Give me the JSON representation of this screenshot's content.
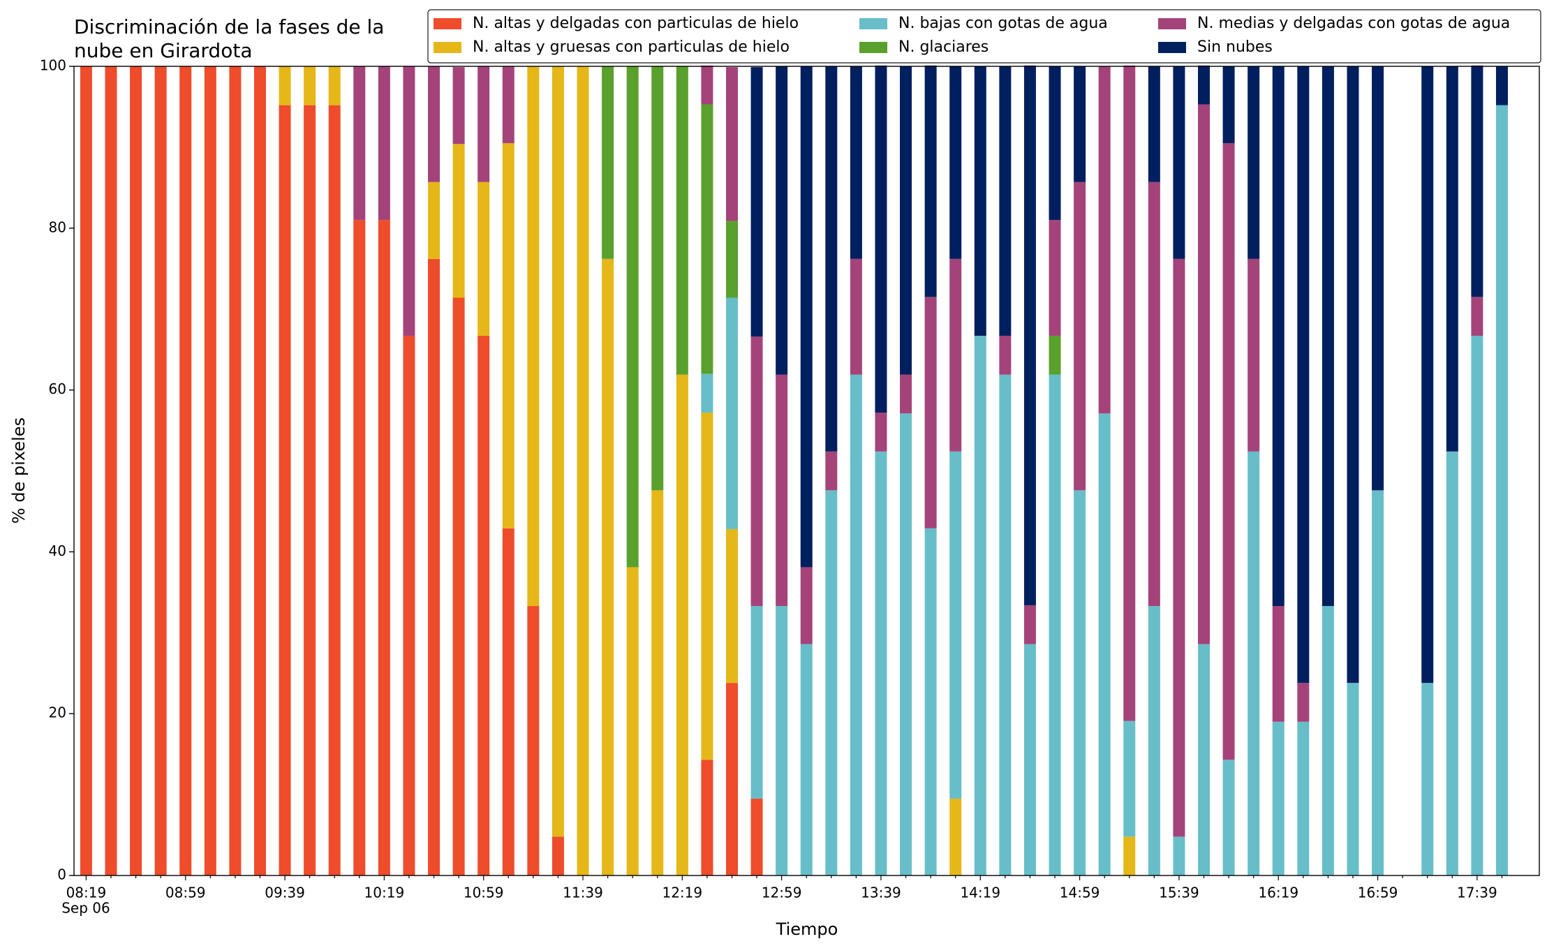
{
  "chart_data": {
    "type": "stacked_bar",
    "title": [
      "Discriminación de la fases de la",
      "nube en Girardota"
    ],
    "x_label": "Tiempo",
    "y_label": "% de pixeles",
    "x_date_label": "Sep 06",
    "categories": [
      "08:19",
      null,
      null,
      null,
      "08:59",
      null,
      null,
      null,
      "09:39",
      null,
      null,
      null,
      "10:19",
      null,
      null,
      null,
      "10:59",
      null,
      null,
      null,
      "11:39",
      null,
      null,
      null,
      "12:19",
      null,
      null,
      null,
      "12:59",
      null,
      null,
      null,
      "13:39",
      null,
      null,
      null,
      "14:19",
      null,
      null,
      null,
      "14:59",
      null,
      null,
      null,
      "15:39",
      null,
      null,
      null,
      "16:19",
      null,
      null,
      null,
      "16:59",
      null,
      null,
      null,
      "17:39",
      null
    ],
    "ylim": [
      0,
      100
    ],
    "yticks": [
      0,
      20,
      40,
      60,
      80,
      100
    ],
    "grid": false,
    "legend": "top-right",
    "series": [
      {
        "name": "N. altas y delgadas con particulas de hielo",
        "color": "#ee4c2b",
        "values": [
          100,
          100,
          100,
          100,
          100,
          100,
          100,
          100,
          95.2,
          95.2,
          95.2,
          81,
          81,
          66.7,
          76.2,
          71.4,
          66.7,
          42.9,
          33.3,
          4.8,
          0,
          0,
          0,
          0,
          0,
          14.3,
          23.8,
          9.5,
          0,
          0,
          0,
          0,
          0,
          0,
          0,
          0,
          0,
          0,
          0,
          0,
          0,
          0,
          0,
          0,
          0,
          0,
          0,
          0,
          0,
          0,
          0,
          0,
          0,
          null,
          0,
          0,
          0,
          0
        ]
      },
      {
        "name": "N. altas y gruesas con particulas de hielo",
        "color": "#e5b718",
        "values": [
          0,
          0,
          0,
          0,
          0,
          0,
          0,
          0,
          4.8,
          4.8,
          4.8,
          0,
          0,
          0,
          9.5,
          19,
          19,
          47.6,
          66.7,
          95.2,
          100,
          76.2,
          38.1,
          47.6,
          61.9,
          42.9,
          19,
          0,
          0,
          0,
          0,
          0,
          0,
          0,
          0,
          9.5,
          0,
          0,
          0,
          0,
          0,
          0,
          4.8,
          0,
          0,
          0,
          0,
          0,
          0,
          0,
          0,
          0,
          0,
          null,
          0,
          0,
          0,
          0
        ]
      },
      {
        "name": "N. bajas con gotas de agua",
        "color": "#67bec9",
        "values": [
          0,
          0,
          0,
          0,
          0,
          0,
          0,
          0,
          0,
          0,
          0,
          0,
          0,
          0,
          0,
          0,
          0,
          0,
          0,
          0,
          0,
          0,
          0,
          0,
          0,
          4.8,
          28.6,
          23.8,
          33.3,
          28.6,
          47.6,
          61.9,
          52.4,
          57.1,
          42.9,
          42.9,
          66.7,
          61.9,
          28.6,
          61.9,
          47.6,
          57.1,
          14.3,
          33.3,
          4.8,
          28.6,
          14.3,
          52.4,
          19,
          19,
          33.3,
          23.8,
          47.6,
          null,
          23.8,
          52.4,
          66.7,
          95.2
        ]
      },
      {
        "name": "N. glaciares",
        "color": "#5aa02c",
        "values": [
          0,
          0,
          0,
          0,
          0,
          0,
          0,
          0,
          0,
          0,
          0,
          0,
          0,
          0,
          0,
          0,
          0,
          0,
          0,
          0,
          0,
          23.8,
          61.9,
          52.4,
          38.1,
          33.3,
          9.5,
          0,
          0,
          0,
          0,
          0,
          0,
          0,
          0,
          0,
          0,
          0,
          0,
          4.8,
          0,
          0,
          0,
          0,
          0,
          0,
          0,
          0,
          0,
          0,
          0,
          0,
          0,
          null,
          0,
          0,
          0,
          0
        ]
      },
      {
        "name": "N. medias y delgadas con gotas de agua",
        "color": "#a4437a",
        "values": [
          0,
          0,
          0,
          0,
          0,
          0,
          0,
          0,
          0,
          0,
          0,
          19,
          19,
          33.3,
          14.3,
          9.5,
          14.3,
          9.5,
          0,
          0,
          0,
          0,
          0,
          0,
          0,
          4.8,
          19,
          33.3,
          28.6,
          9.5,
          4.8,
          14.3,
          4.8,
          4.8,
          28.6,
          23.8,
          0,
          4.8,
          4.8,
          14.3,
          38.1,
          42.9,
          81,
          52.4,
          71.4,
          66.7,
          76.2,
          23.8,
          14.3,
          4.8,
          0,
          0,
          0,
          null,
          0,
          0,
          4.8,
          0
        ]
      },
      {
        "name": "Sin nubes",
        "color": "#001f5f",
        "values": [
          0,
          0,
          0,
          0,
          0,
          0,
          0,
          0,
          0,
          0,
          0,
          0,
          0,
          0,
          0,
          0,
          0,
          0,
          0,
          0,
          0,
          0,
          0,
          0,
          0,
          0,
          0,
          33.3,
          38.1,
          61.9,
          47.6,
          23.8,
          42.9,
          38.1,
          28.6,
          23.8,
          33.3,
          33.3,
          66.7,
          19,
          14.3,
          0,
          0,
          14.3,
          23.8,
          4.8,
          9.5,
          23.8,
          66.7,
          76.2,
          66.7,
          76.2,
          52.4,
          null,
          76.2,
          47.6,
          28.6,
          4.8
        ]
      }
    ]
  }
}
